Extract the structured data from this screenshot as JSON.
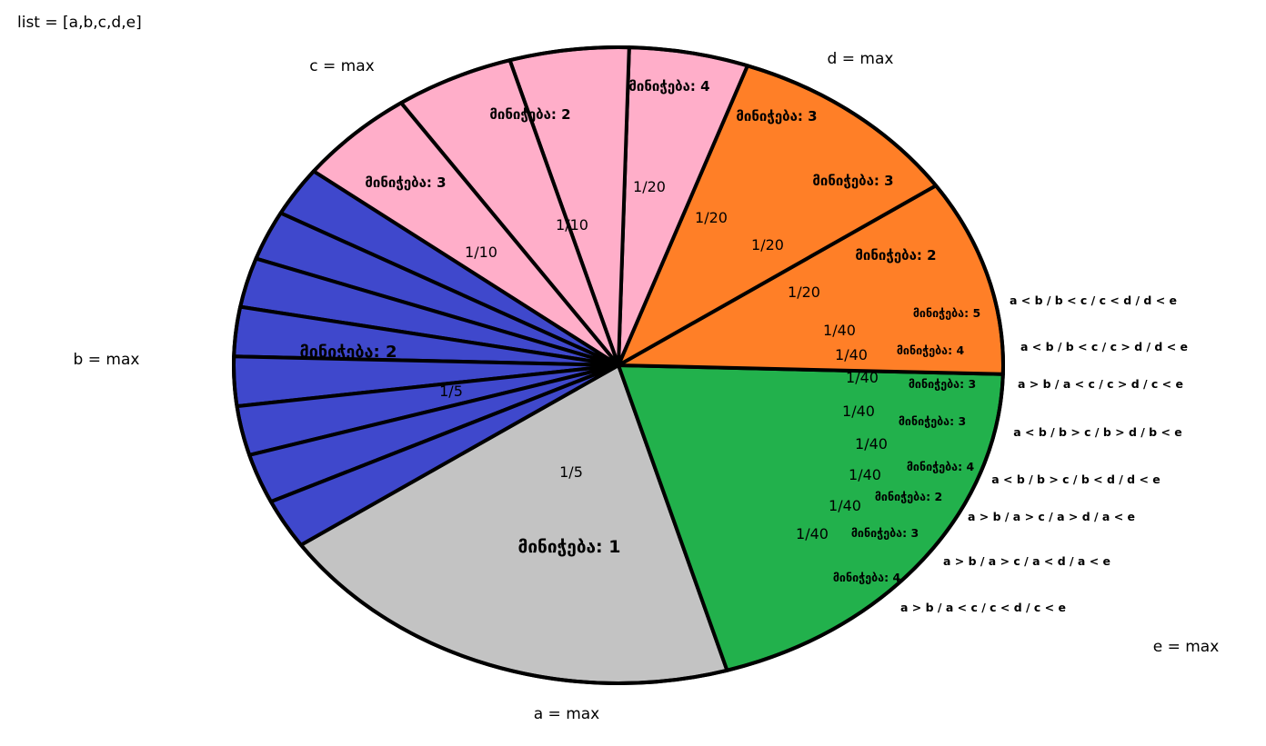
{
  "list_label": "list = [a,b,c,d,e]",
  "groups": [
    {
      "key": "a",
      "label": "a = max",
      "color": "#c3c3c3"
    },
    {
      "key": "b",
      "label": "b = max",
      "color": "#22b14c"
    },
    {
      "key": "c",
      "label": "c = max",
      "color": "#ff7f27"
    },
    {
      "key": "d",
      "label": "d = max",
      "color": "#ffaec9"
    },
    {
      "key": "e",
      "label": "e = max",
      "color": "#3f48cc"
    }
  ],
  "slices": [
    {
      "group": "a",
      "fraction": "1/5",
      "share": 0.2,
      "assign": "მინიჭება: 1",
      "condition": ""
    },
    {
      "group": "b",
      "fraction": "1/5",
      "share": 0.2,
      "assign": "მინიჭება: 2",
      "condition": ""
    },
    {
      "group": "c",
      "fraction": "1/10",
      "share": 0.1,
      "assign": "მინიჭება: 3",
      "condition": ""
    },
    {
      "group": "c",
      "fraction": "1/10",
      "share": 0.1,
      "assign": "მინიჭება: 2",
      "condition": ""
    },
    {
      "group": "d",
      "fraction": "1/20",
      "share": 0.05,
      "assign": "მინიჭება: 4",
      "condition": ""
    },
    {
      "group": "d",
      "fraction": "1/20",
      "share": 0.05,
      "assign": "მინიჭება: 3",
      "condition": ""
    },
    {
      "group": "d",
      "fraction": "1/20",
      "share": 0.05,
      "assign": "მინიჭება: 3",
      "condition": ""
    },
    {
      "group": "d",
      "fraction": "1/20",
      "share": 0.05,
      "assign": "მინიჭება: 2",
      "condition": ""
    },
    {
      "group": "e",
      "fraction": "1/40",
      "share": 0.025,
      "assign": "მინიჭება: 5",
      "condition": "a < b / b < c / c < d / d < e"
    },
    {
      "group": "e",
      "fraction": "1/40",
      "share": 0.025,
      "assign": "მინიჭება: 4",
      "condition": "a < b / b < c / c > d / d < e"
    },
    {
      "group": "e",
      "fraction": "1/40",
      "share": 0.025,
      "assign": "მინიჭება:  3",
      "condition": "a > b / a < c / c > d / c < e"
    },
    {
      "group": "e",
      "fraction": "1/40",
      "share": 0.025,
      "assign": "მინიჭება: 3",
      "condition": "a < b / b > c / b > d / b < e"
    },
    {
      "group": "e",
      "fraction": "1/40",
      "share": 0.025,
      "assign": "მინიჭება: 4",
      "condition": "a < b / b > c / b < d / d < e"
    },
    {
      "group": "e",
      "fraction": "1/40",
      "share": 0.025,
      "assign": "მინიჭება: 2",
      "condition": "a > b / a > c / a > d / a < e"
    },
    {
      "group": "e",
      "fraction": "1/40",
      "share": 0.025,
      "assign": "მინიჭება: 3",
      "condition": "a > b / a > c / a < d / a < e"
    },
    {
      "group": "e",
      "fraction": "1/40",
      "share": 0.025,
      "assign": "მინიჭება: 4",
      "condition": "a > b / a < c / c < d / c < e"
    }
  ]
}
